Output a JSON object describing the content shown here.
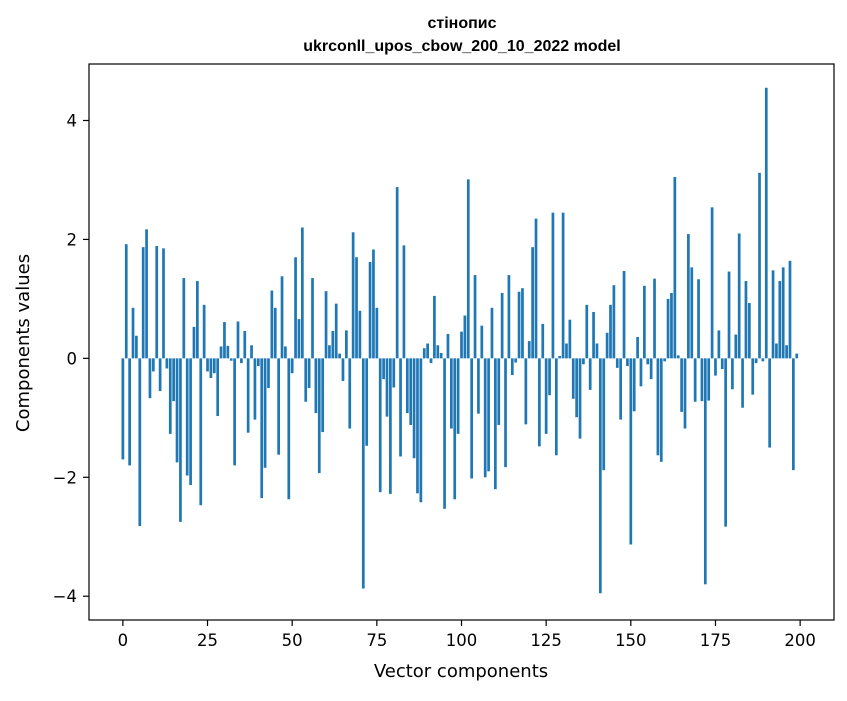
{
  "chart_data": {
    "type": "bar",
    "title": "стінопис",
    "subtitle": "ukrconll_upos_cbow_200_10_2022 model",
    "xlabel": "Vector components",
    "ylabel": "Components values",
    "xlim": [
      -10,
      210
    ],
    "ylim": [
      -4.4,
      4.95
    ],
    "xticks": [
      0,
      25,
      50,
      75,
      100,
      125,
      150,
      175,
      200
    ],
    "yticks": [
      -4,
      -2,
      0,
      2,
      4
    ],
    "ytick_labels": [
      "−4",
      "−2",
      "0",
      "2",
      "4"
    ],
    "grid": false,
    "bar_color": "#1f77b4",
    "values": [
      -1.7,
      1.92,
      -1.8,
      0.85,
      0.38,
      -2.82,
      1.87,
      2.17,
      -0.67,
      -0.22,
      1.89,
      -0.55,
      1.85,
      -0.17,
      -1.27,
      -0.72,
      -1.75,
      -2.75,
      1.35,
      -1.97,
      -2.13,
      0.53,
      1.3,
      -2.47,
      0.9,
      -0.22,
      -0.33,
      -0.25,
      -0.97,
      0.2,
      0.61,
      0.21,
      -0.04,
      -1.8,
      0.62,
      -0.08,
      0.46,
      -1.25,
      0.22,
      -1.03,
      -0.13,
      -2.35,
      -1.84,
      -0.5,
      1.14,
      0.85,
      -1.62,
      1.38,
      0.2,
      -2.37,
      -0.25,
      1.7,
      0.66,
      2.2,
      -0.73,
      -0.5,
      1.35,
      -0.92,
      -1.93,
      -1.24,
      1.13,
      0.22,
      0.46,
      0.92,
      0.08,
      -0.38,
      0.47,
      -1.18,
      2.12,
      1.7,
      0.8,
      -3.87,
      -1.47,
      1.62,
      1.83,
      0.85,
      -2.25,
      -0.35,
      -0.98,
      -2.28,
      -0.49,
      2.88,
      -1.65,
      1.9,
      -0.92,
      -1.12,
      -1.68,
      -2.27,
      -2.42,
      0.17,
      0.25,
      -0.08,
      1.05,
      0.22,
      0.09,
      -2.53,
      0.41,
      -1.18,
      -2.37,
      -1.27,
      0.45,
      0.72,
      3.01,
      -2.02,
      1.4,
      -0.93,
      0.55,
      -2.0,
      -1.9,
      0.85,
      -2.2,
      -1.12,
      1.1,
      -1.83,
      1.4,
      -0.28,
      -0.07,
      1.12,
      1.18,
      -1.11,
      0.29,
      1.87,
      2.35,
      -1.48,
      0.58,
      -1.27,
      -0.62,
      2.45,
      -1.63,
      0.04,
      2.45,
      0.25,
      0.65,
      -0.68,
      -0.99,
      -1.35,
      -0.1,
      0.9,
      -0.53,
      0.78,
      0.25,
      -3.95,
      -1.88,
      0.43,
      0.9,
      1.23,
      -0.16,
      -1.03,
      1.47,
      -0.13,
      -3.13,
      -0.89,
      0.36,
      -0.47,
      1.22,
      -0.1,
      -0.35,
      1.34,
      -1.63,
      -1.74,
      -0.05,
      1.0,
      1.1,
      3.05,
      0.05,
      -0.9,
      -1.18,
      2.09,
      1.53,
      -0.73,
      1.33,
      -0.72,
      -3.8,
      -0.71,
      2.54,
      -0.29,
      0.47,
      -0.18,
      -2.83,
      1.46,
      -0.52,
      0.4,
      2.1,
      -0.83,
      1.3,
      0.93,
      -0.61,
      -0.08,
      3.12,
      -0.05,
      4.55,
      -1.5,
      1.48,
      0.25,
      1.3,
      1.53,
      0.22,
      1.64,
      -1.88,
      0.08
    ]
  }
}
